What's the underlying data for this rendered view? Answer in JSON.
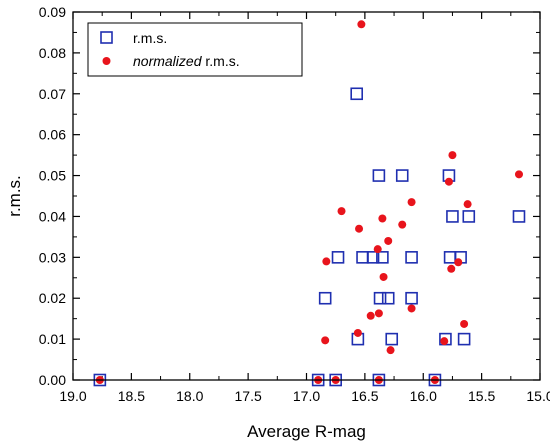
{
  "chart_data": {
    "type": "scatter",
    "xlabel": "Average R-mag",
    "ylabel": "r.m.s.",
    "xlim": [
      19.0,
      15.0
    ],
    "x_reversed": true,
    "ylim": [
      0.0,
      0.09
    ],
    "x_ticks": [
      "19.0",
      "18.5",
      "18.0",
      "17.5",
      "17.0",
      "16.5",
      "16.0",
      "15.5",
      "15.0"
    ],
    "y_ticks": [
      "0.00",
      "0.01",
      "0.02",
      "0.03",
      "0.04",
      "0.05",
      "0.06",
      "0.07",
      "0.08",
      "0.09"
    ],
    "grid": false,
    "legend_position": "top-left",
    "series": [
      {
        "name": "r.m.s.",
        "marker": "open-square",
        "color": "#1f2fb0",
        "points": [
          [
            18.77,
            0.0
          ],
          [
            16.9,
            0.0
          ],
          [
            16.75,
            0.0
          ],
          [
            16.38,
            0.0
          ],
          [
            15.9,
            0.0
          ],
          [
            16.57,
            0.07
          ],
          [
            16.38,
            0.05
          ],
          [
            16.18,
            0.05
          ],
          [
            15.78,
            0.05
          ],
          [
            15.75,
            0.04
          ],
          [
            15.61,
            0.04
          ],
          [
            15.18,
            0.04
          ],
          [
            16.73,
            0.03
          ],
          [
            16.52,
            0.03
          ],
          [
            16.43,
            0.03
          ],
          [
            16.35,
            0.03
          ],
          [
            16.1,
            0.03
          ],
          [
            15.77,
            0.03
          ],
          [
            15.68,
            0.03
          ],
          [
            16.84,
            0.02
          ],
          [
            16.37,
            0.02
          ],
          [
            16.3,
            0.02
          ],
          [
            16.1,
            0.02
          ],
          [
            16.56,
            0.01
          ],
          [
            16.27,
            0.01
          ],
          [
            15.81,
            0.01
          ],
          [
            15.65,
            0.01
          ]
        ]
      },
      {
        "name": "normalized r.m.s.",
        "name_italic_part": "normalized",
        "name_plain_part": " r.m.s.",
        "marker": "filled-circle",
        "color": "#e8141c",
        "points": [
          [
            18.77,
            0.0
          ],
          [
            16.9,
            0.0
          ],
          [
            16.75,
            0.0
          ],
          [
            16.38,
            0.0
          ],
          [
            15.9,
            0.0
          ],
          [
            16.53,
            0.087
          ],
          [
            15.75,
            0.055
          ],
          [
            15.18,
            0.0503
          ],
          [
            15.78,
            0.0485
          ],
          [
            16.1,
            0.0435
          ],
          [
            15.62,
            0.043
          ],
          [
            16.7,
            0.0413
          ],
          [
            16.35,
            0.0395
          ],
          [
            16.18,
            0.038
          ],
          [
            16.55,
            0.037
          ],
          [
            16.3,
            0.034
          ],
          [
            16.39,
            0.032
          ],
          [
            16.83,
            0.029
          ],
          [
            15.7,
            0.0288
          ],
          [
            15.76,
            0.0272
          ],
          [
            16.34,
            0.0252
          ],
          [
            16.1,
            0.0175
          ],
          [
            16.38,
            0.0163
          ],
          [
            16.45,
            0.0157
          ],
          [
            15.65,
            0.0137
          ],
          [
            16.56,
            0.0115
          ],
          [
            16.84,
            0.0097
          ],
          [
            15.82,
            0.0095
          ],
          [
            16.28,
            0.0073
          ]
        ]
      }
    ]
  }
}
